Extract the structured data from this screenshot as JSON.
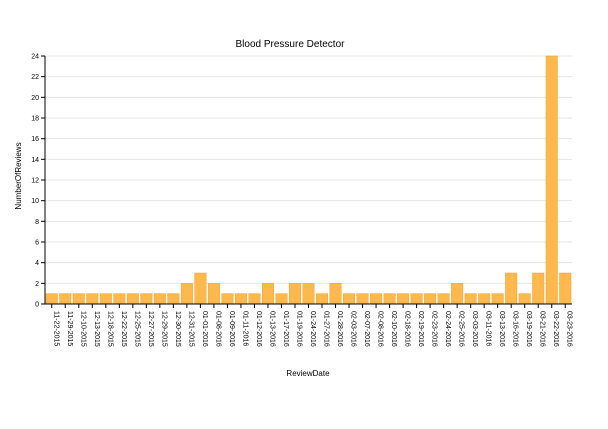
{
  "chart_data": {
    "type": "bar",
    "title": "Blood Pressure Detector",
    "xlabel": "ReviewDate",
    "ylabel": "NumberOfReviews",
    "ylim": [
      0,
      24
    ],
    "yticks": [
      0,
      2,
      4,
      6,
      8,
      10,
      12,
      14,
      16,
      18,
      20,
      22,
      24
    ],
    "grid": true,
    "bar_color": "#ffb84d",
    "categories": [
      "11-22-2015",
      "11-29-2015",
      "12-10-2015",
      "12-13-2015",
      "12-18-2015",
      "12-22-2015",
      "12-25-2015",
      "12-27-2015",
      "12-29-2015",
      "12-30-2015",
      "12-31-2015",
      "01-01-2016",
      "01-08-2016",
      "01-09-2016",
      "01-11-2016",
      "01-12-2016",
      "01-13-2016",
      "01-17-2016",
      "01-19-2016",
      "01-24-2016",
      "01-27-2016",
      "01-28-2016",
      "02-03-2016",
      "02-07-2016",
      "02-08-2016",
      "02-10-2016",
      "02-18-2016",
      "02-19-2016",
      "02-23-2016",
      "02-24-2016",
      "02-25-2016",
      "03-03-2016",
      "03-11-2016",
      "03-13-2016",
      "03-16-2016",
      "03-19-2016",
      "03-21-2016",
      "03-22-2016",
      "03-23-2016"
    ],
    "values": [
      1,
      1,
      1,
      1,
      1,
      1,
      1,
      1,
      1,
      1,
      2,
      3,
      2,
      1,
      1,
      1,
      2,
      1,
      2,
      2,
      1,
      2,
      1,
      1,
      1,
      1,
      1,
      1,
      1,
      1,
      2,
      1,
      1,
      1,
      3,
      1,
      3,
      24,
      3
    ]
  }
}
